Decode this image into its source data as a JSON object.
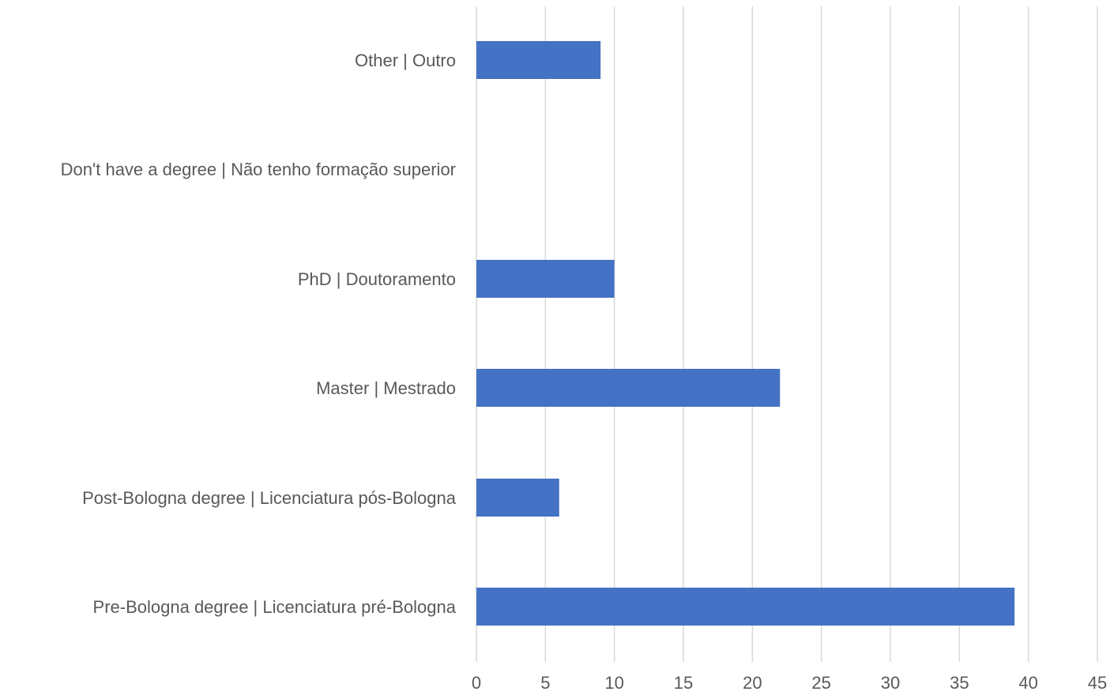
{
  "chart_data": {
    "type": "bar",
    "orientation": "horizontal",
    "title": "",
    "xlabel": "",
    "ylabel": "",
    "categories": [
      "Other | Outro",
      "Don't have a degree | Não tenho formação superior",
      "PhD | Doutoramento",
      "Master | Mestrado",
      "Post-Bologna degree | Licenciatura pós-Bologna",
      "Pre-Bologna degree | Licenciatura pré-Bologna"
    ],
    "values": [
      9,
      0,
      10,
      22,
      6,
      39
    ],
    "xlim": [
      0,
      45
    ],
    "xticks": [
      0,
      5,
      10,
      15,
      20,
      25,
      30,
      35,
      40,
      45
    ],
    "grid": "vertical",
    "legend": "none",
    "bar_color": "#4472C4",
    "grid_color": "#D9D9D9",
    "text_color": "#595959"
  }
}
